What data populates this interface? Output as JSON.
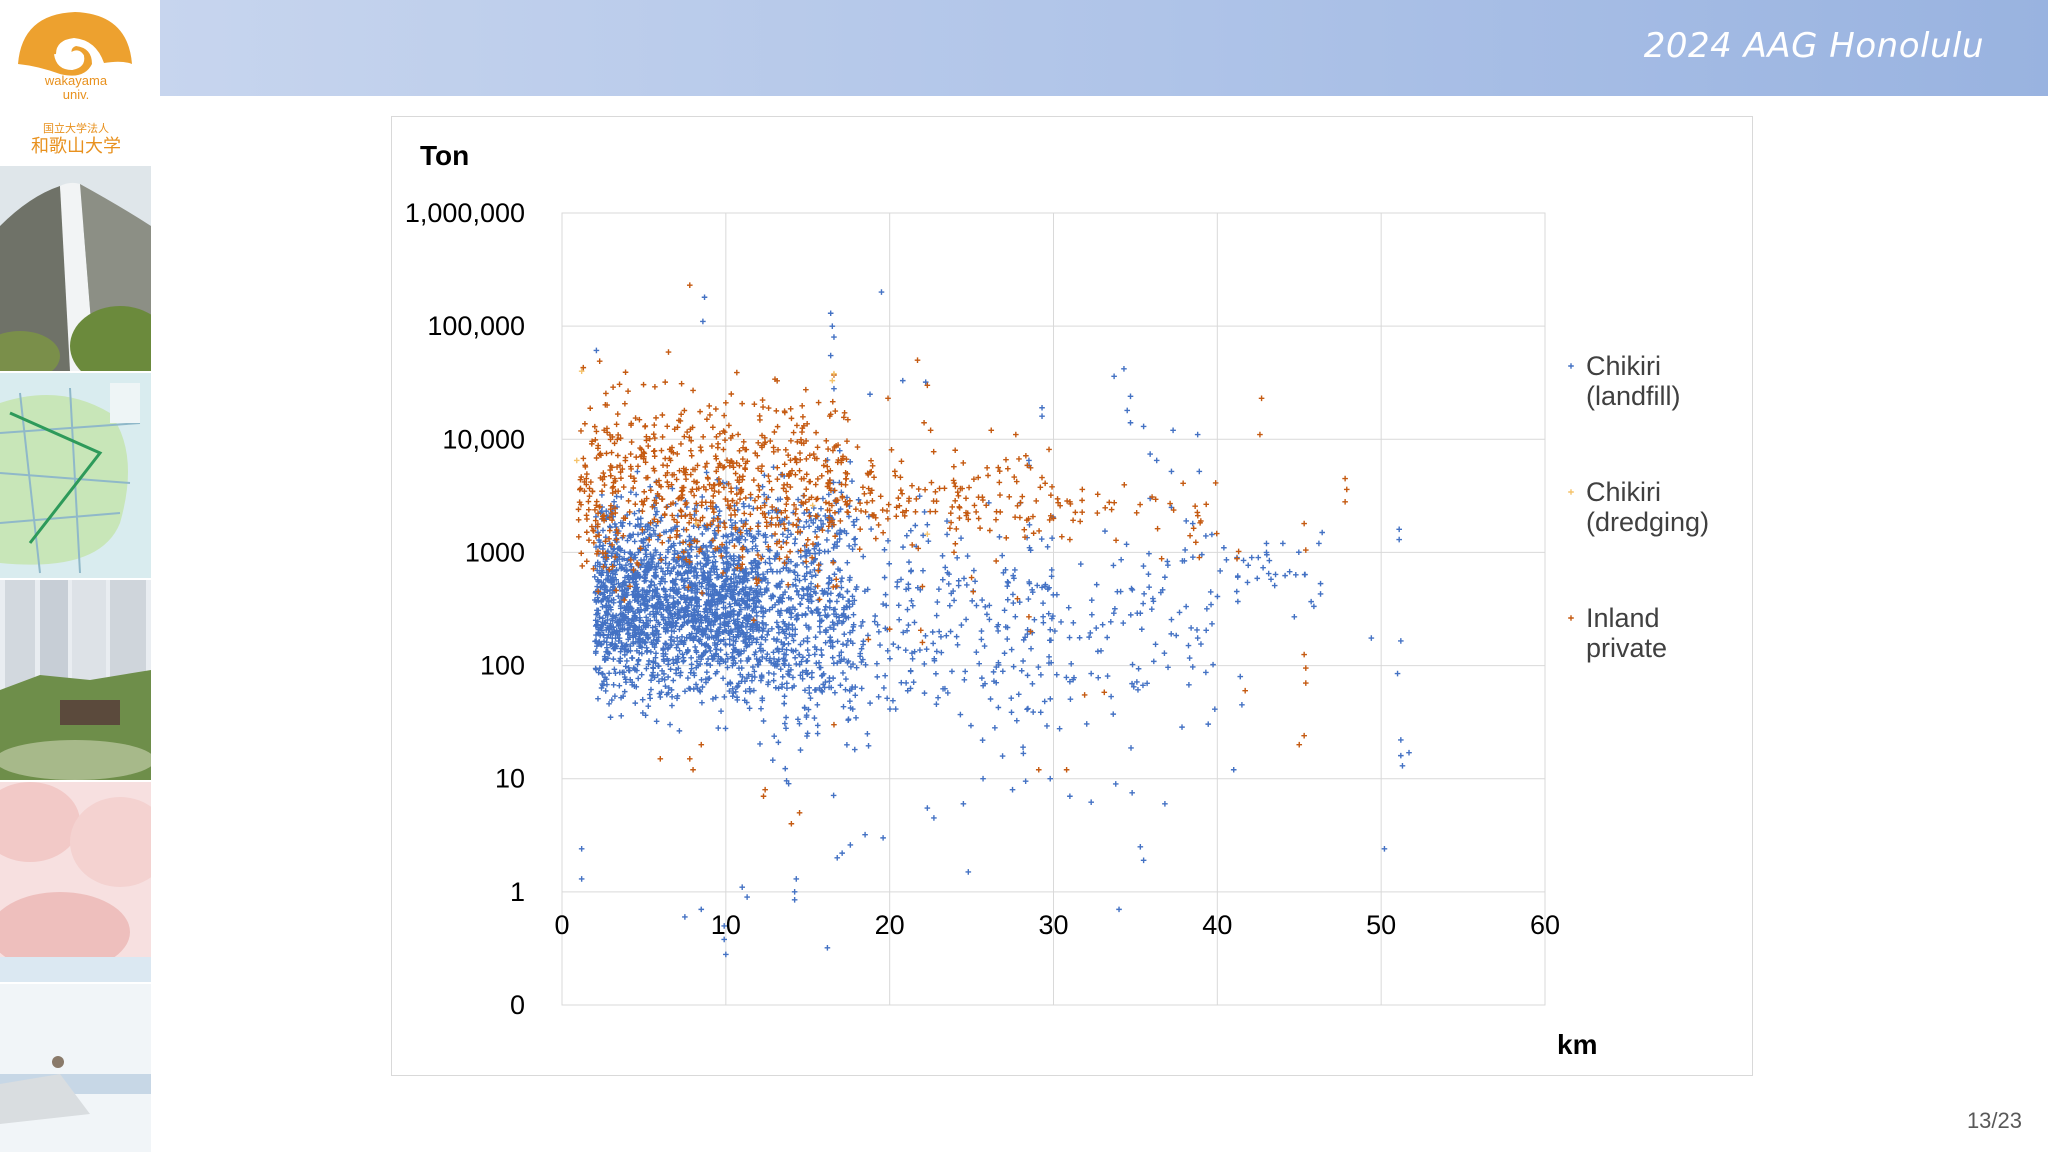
{
  "header": {
    "title": "2024 AAG Honolulu"
  },
  "logo": {
    "name_en": "wakayama",
    "name_en2": "univ.",
    "name_jp_small": "国立大学法人",
    "name_jp": "和歌山大学",
    "color": "#e8911e"
  },
  "page": {
    "number": "13/23"
  },
  "chart_data": {
    "type": "scatter",
    "title": "",
    "ylabel": "Ton",
    "xlabel": "km",
    "x_ticks": [
      "0",
      "10",
      "20",
      "30",
      "40",
      "50",
      "60"
    ],
    "xlim": [
      0,
      60
    ],
    "y_scale": "log",
    "y_ticks": [
      "1,000,000",
      "100,000",
      "10,000",
      "1000",
      "100",
      "10",
      "1",
      "0"
    ],
    "y_tick_values": [
      1000000,
      100000,
      10000,
      1000,
      100,
      10,
      1,
      0
    ],
    "ylim": [
      0,
      1000000
    ],
    "grid": true,
    "legend_position": "right",
    "marker": "+",
    "series": [
      {
        "name": "Chikiri (landfill)",
        "label_lines": [
          "Chikiri",
          "(landfill)"
        ],
        "color": "#4472c4",
        "points": [
          [
            2.1,
            61000
          ],
          [
            8.6,
            110000
          ],
          [
            8.7,
            180000
          ],
          [
            16.4,
            130000
          ],
          [
            16.5,
            100000
          ],
          [
            16.6,
            80000
          ],
          [
            16.4,
            55000
          ],
          [
            19.5,
            200000
          ],
          [
            16.6,
            28000
          ],
          [
            18.8,
            25000
          ],
          [
            20.8,
            33000
          ],
          [
            22.2,
            32000
          ],
          [
            33.7,
            36000
          ],
          [
            34.3,
            42000
          ],
          [
            34.7,
            24000
          ],
          [
            34.5,
            18000
          ],
          [
            34.7,
            14000
          ],
          [
            35.5,
            13000
          ],
          [
            37.3,
            12000
          ],
          [
            38.8,
            11000
          ],
          [
            29.3,
            19000
          ],
          [
            29.3,
            16000
          ],
          [
            28.5,
            6500
          ],
          [
            36.3,
            6500
          ],
          [
            37.2,
            5200
          ],
          [
            38.9,
            5200
          ],
          [
            35.9,
            7400
          ],
          [
            35.9,
            3000
          ],
          [
            37.2,
            2500
          ],
          [
            38.1,
            1900
          ],
          [
            38.5,
            1800
          ],
          [
            39.3,
            1400
          ],
          [
            40.4,
            1100
          ],
          [
            41.2,
            900
          ],
          [
            41.6,
            850
          ],
          [
            42.1,
            900
          ],
          [
            42.5,
            900
          ],
          [
            43.0,
            1000
          ],
          [
            43.0,
            1200
          ],
          [
            44.0,
            1200
          ],
          [
            46.2,
            1200
          ],
          [
            46.4,
            1500
          ],
          [
            46.3,
            530
          ],
          [
            46.3,
            430
          ],
          [
            44.7,
            270
          ],
          [
            49.4,
            175
          ],
          [
            51.2,
            165
          ],
          [
            51.1,
            1300
          ],
          [
            51.1,
            1600
          ],
          [
            51.0,
            85
          ],
          [
            51.2,
            22
          ],
          [
            51.2,
            16
          ],
          [
            51.3,
            13
          ],
          [
            51.7,
            17
          ],
          [
            41.4,
            80
          ],
          [
            41.5,
            45
          ],
          [
            39.3,
            87
          ],
          [
            39.0,
            155
          ],
          [
            38.8,
            175
          ],
          [
            38.4,
            215
          ],
          [
            37.2,
            255
          ],
          [
            36.1,
            370
          ],
          [
            36.0,
            315
          ],
          [
            35.3,
            290
          ],
          [
            33.0,
            230
          ],
          [
            32.9,
            135
          ],
          [
            32.3,
            85
          ],
          [
            31.2,
            75
          ],
          [
            31.0,
            72
          ],
          [
            30.2,
            83
          ],
          [
            50.2,
            2.4
          ],
          [
            35.5,
            1.9
          ],
          [
            35.3,
            2.5
          ],
          [
            34.0,
            0.7
          ],
          [
            24.8,
            1.5
          ],
          [
            16.2,
            0.32
          ],
          [
            10.0,
            0.28
          ],
          [
            9.9,
            0.38
          ],
          [
            9.9,
            0.5
          ],
          [
            7.5,
            0.6
          ],
          [
            8.5,
            0.7
          ],
          [
            11.3,
            0.9
          ],
          [
            11.0,
            1.1
          ],
          [
            14.2,
            0.85
          ],
          [
            14.2,
            1.0
          ],
          [
            14.3,
            1.3
          ],
          [
            1.2,
            1.3
          ],
          [
            1.2,
            2.4
          ],
          [
            41.0,
            12
          ],
          [
            33.8,
            9
          ],
          [
            34.8,
            7.5
          ],
          [
            36.8,
            6
          ],
          [
            31.0,
            7
          ],
          [
            29.8,
            10
          ],
          [
            32.3,
            6.2
          ],
          [
            28.3,
            9.5
          ],
          [
            27.5,
            8
          ],
          [
            25.7,
            10
          ],
          [
            24.5,
            6
          ],
          [
            22.3,
            5.5
          ],
          [
            22.7,
            4.5
          ],
          [
            19.6,
            3
          ],
          [
            18.5,
            3.2
          ],
          [
            17.6,
            2.6
          ],
          [
            17.1,
            2.2
          ],
          [
            16.8,
            2.0
          ]
        ],
        "clusters": [
          [
            2.0,
            12.0,
            1.5,
            3.6,
            1900
          ],
          [
            12.0,
            18.0,
            1.0,
            4.0,
            600
          ],
          [
            18.0,
            30.0,
            1.0,
            3.8,
            260
          ],
          [
            30.0,
            40.0,
            1.2,
            3.7,
            90
          ],
          [
            40.0,
            46.0,
            2.4,
            3.2,
            25
          ]
        ]
      },
      {
        "name": "Chikiri (dredging)",
        "label_lines": [
          "Chikiri",
          "(dredging)"
        ],
        "color": "#f5c36b",
        "points": [
          [
            1.2,
            40000
          ],
          [
            0.9,
            6500
          ],
          [
            16.5,
            33000
          ],
          [
            16.6,
            38000
          ],
          [
            22.3,
            1450
          ],
          [
            15.3,
            2600
          ],
          [
            8.2,
            1800
          ]
        ],
        "clusters": []
      },
      {
        "name": "Inland private",
        "label_lines": [
          "Inland",
          "private"
        ],
        "color": "#c55a11",
        "points": [
          [
            7.8,
            230000
          ],
          [
            1.3,
            43000
          ],
          [
            2.3,
            49000
          ],
          [
            6.5,
            59000
          ],
          [
            6.3,
            32000
          ],
          [
            7.3,
            31000
          ],
          [
            8.0,
            27000
          ],
          [
            10.0,
            21000
          ],
          [
            13.0,
            34000
          ],
          [
            16.6,
            37000
          ],
          [
            19.9,
            23000
          ],
          [
            21.7,
            50000
          ],
          [
            22.3,
            30000
          ],
          [
            22.1,
            14000
          ],
          [
            22.5,
            12000
          ],
          [
            24.0,
            8000
          ],
          [
            26.2,
            12000
          ],
          [
            27.7,
            11000
          ],
          [
            42.7,
            23000
          ],
          [
            42.6,
            11000
          ],
          [
            47.8,
            4500
          ],
          [
            47.9,
            3600
          ],
          [
            47.8,
            2800
          ],
          [
            45.3,
            1800
          ],
          [
            45.4,
            1050
          ],
          [
            45.3,
            125
          ],
          [
            45.4,
            95
          ],
          [
            45.4,
            70
          ],
          [
            45.3,
            24
          ],
          [
            45.0,
            20
          ],
          [
            41.7,
            60
          ],
          [
            41.3,
            1020
          ],
          [
            41.2,
            880
          ],
          [
            38.9,
            900
          ],
          [
            36.6,
            880
          ],
          [
            31.0,
            1300
          ],
          [
            30.0,
            2000
          ],
          [
            28.6,
            5600
          ],
          [
            27.1,
            6600
          ],
          [
            27.3,
            3100
          ],
          [
            26.5,
            840
          ],
          [
            25.0,
            600
          ],
          [
            25.1,
            450
          ],
          [
            27.8,
            390
          ],
          [
            28.5,
            270
          ],
          [
            28.6,
            200
          ],
          [
            22.0,
            500
          ],
          [
            21.9,
            205
          ],
          [
            22.0,
            160
          ],
          [
            20.0,
            210
          ],
          [
            18.7,
            170
          ],
          [
            16.6,
            30
          ],
          [
            14.5,
            5
          ],
          [
            14.0,
            4
          ],
          [
            12.3,
            7
          ],
          [
            8.0,
            12
          ],
          [
            7.8,
            15
          ],
          [
            8.5,
            20
          ],
          [
            6.0,
            15
          ],
          [
            12.4,
            8
          ],
          [
            31.9,
            55
          ],
          [
            33.1,
            58
          ],
          [
            29.1,
            12
          ],
          [
            30.8,
            12
          ]
        ],
        "clusters": [
          [
            1.0,
            17.5,
            2.5,
            4.6,
            700
          ],
          [
            17.5,
            30.0,
            2.9,
            4.0,
            140
          ],
          [
            30.0,
            40.0,
            3.0,
            3.8,
            40
          ]
        ]
      }
    ]
  }
}
